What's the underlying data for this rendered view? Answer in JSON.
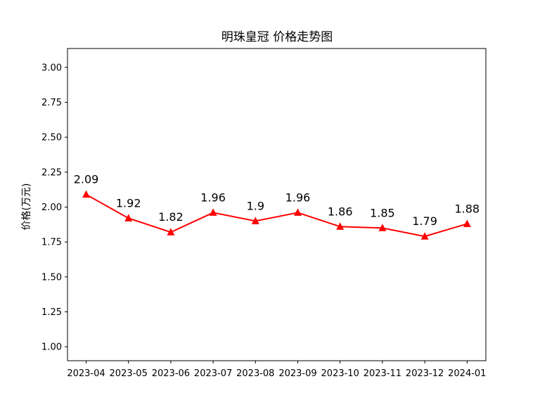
{
  "chart_data": {
    "type": "line",
    "title": "明珠皇冠 价格走势图",
    "xlabel": "",
    "ylabel": "价格(万元)",
    "categories": [
      "2023-04",
      "2023-05",
      "2023-06",
      "2023-07",
      "2023-08",
      "2023-09",
      "2023-10",
      "2023-11",
      "2023-12",
      "2024-01"
    ],
    "series": [
      {
        "values": [
          2.09,
          1.92,
          1.82,
          1.96,
          1.9,
          1.96,
          1.86,
          1.85,
          1.79,
          1.88
        ],
        "labels": [
          "2.09",
          "1.92",
          "1.82",
          "1.96",
          "1.9",
          "1.96",
          "1.86",
          "1.85",
          "1.79",
          "1.88"
        ],
        "color": "#ff0000",
        "marker": "triangle-up"
      }
    ],
    "ylim": [
      0.9,
      3.135
    ],
    "yticks": [
      1.0,
      1.25,
      1.5,
      1.75,
      2.0,
      2.25,
      2.5,
      2.75,
      3.0
    ],
    "ytick_labels": [
      "1.00",
      "1.25",
      "1.50",
      "1.75",
      "2.00",
      "2.25",
      "2.50",
      "2.75",
      "3.00"
    ],
    "grid": false,
    "legend": "none"
  }
}
